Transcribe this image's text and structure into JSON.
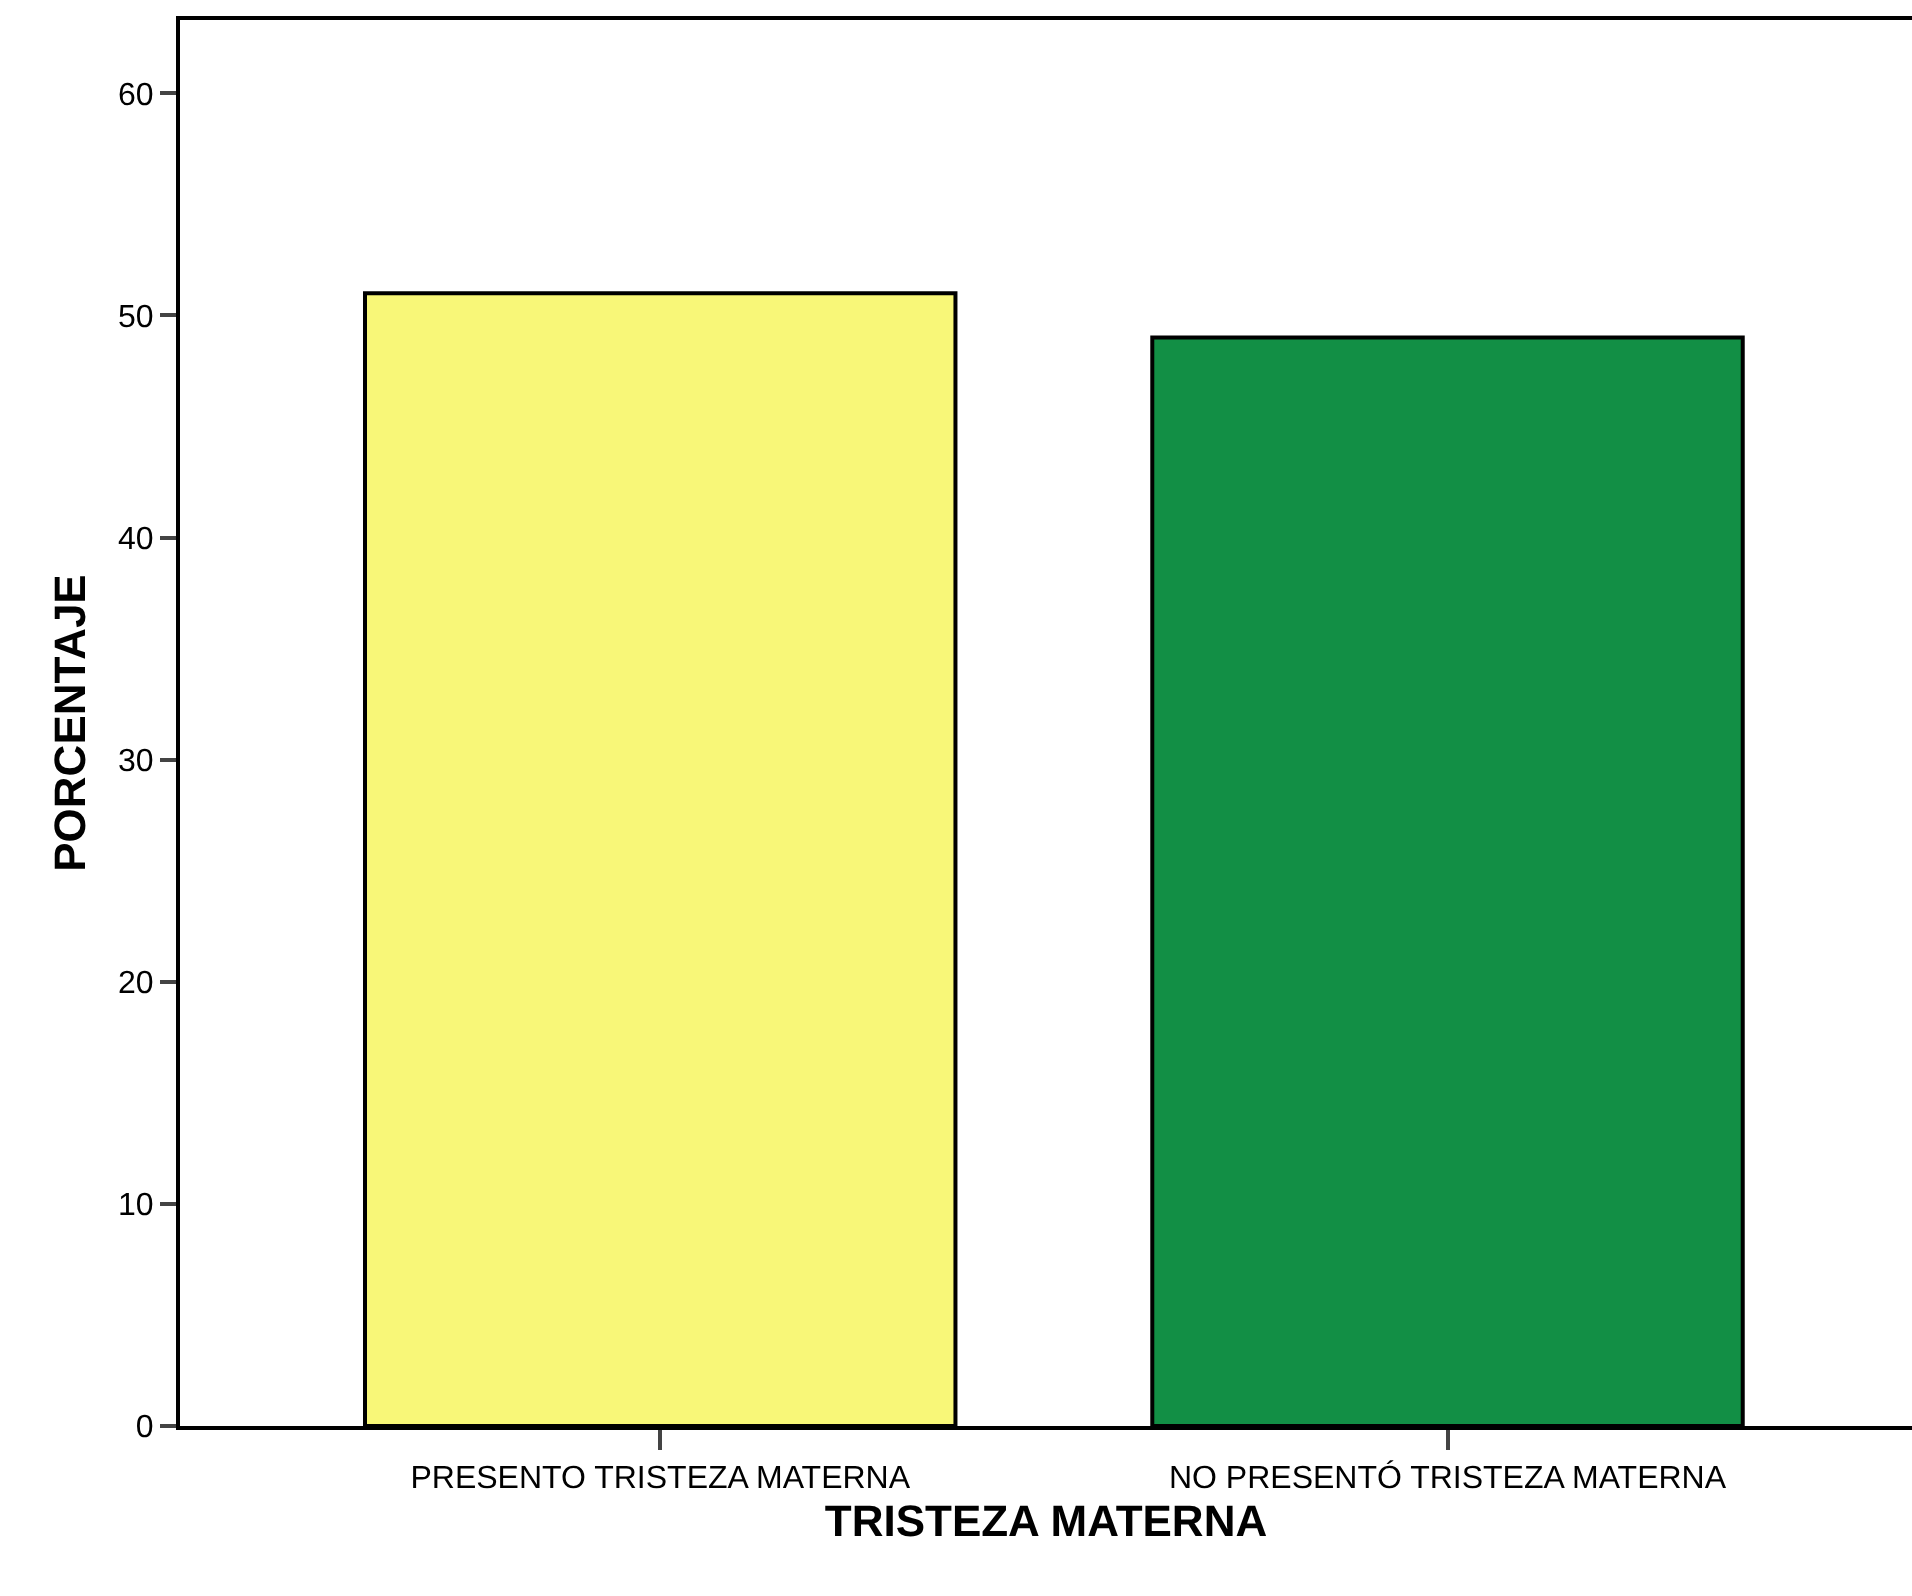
{
  "chart_data": {
    "type": "bar",
    "xlabel": "TRISTEZA MATERNA",
    "ylabel": "PORCENTAJE",
    "categories": [
      "PRESENTO TRISTEZA MATERNA",
      "NO PRESENTÓ TRISTEZA MATERNA"
    ],
    "values": [
      51,
      49
    ],
    "colors": [
      "#f8f778",
      "#128f45"
    ],
    "ylim": [
      0,
      63.3
    ],
    "yticks": [
      0,
      10,
      20,
      30,
      40,
      50,
      60
    ]
  }
}
